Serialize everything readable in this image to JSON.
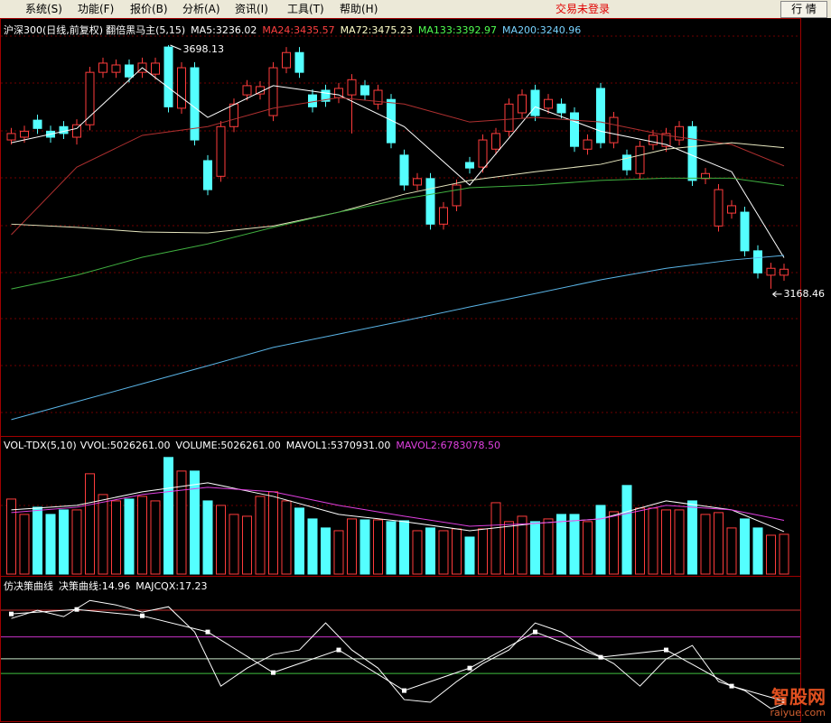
{
  "menu": [
    "系统(S)",
    "功能(F)",
    "报价(B)",
    "分析(A)",
    "资讯(I)",
    "工具(T)",
    "帮助(H)"
  ],
  "status": "交易未登录",
  "button": "行 情",
  "watermark": {
    "title": "智股网",
    "url": "raiyue.com"
  },
  "chart_data": [
    {
      "type": "candlestick",
      "title": "沪深300(日线,前复权)",
      "subtitle": "翻倍黑马主(5,15)",
      "up_color": "#ff3c3c",
      "down_color": "#54ffff",
      "ylim": [
        2874,
        3757
      ],
      "open": [
        3492,
        3498,
        3535,
        3511,
        3521,
        3498,
        3525,
        3639,
        3639,
        3655,
        3639,
        3635,
        3694,
        3561,
        3649,
        3447,
        3413,
        3521,
        3590,
        3592,
        3545,
        3649,
        3682,
        3590,
        3600,
        3584,
        3590,
        3610,
        3570,
        3580,
        3459,
        3394,
        3408,
        3309,
        3349,
        3443,
        3433,
        3472,
        3511,
        3551,
        3600,
        3561,
        3570,
        3551,
        3472,
        3604,
        3486,
        3459,
        3419,
        3482,
        3478,
        3492,
        3521,
        3408,
        3305,
        3333,
        3335,
        3251,
        3198,
        3198
      ],
      "close": [
        3506,
        3511,
        3517,
        3498,
        3506,
        3525,
        3639,
        3659,
        3655,
        3629,
        3659,
        3659,
        3564,
        3649,
        3492,
        3384,
        3521,
        3570,
        3610,
        3608,
        3649,
        3682,
        3639,
        3564,
        3576,
        3604,
        3623,
        3590,
        3600,
        3486,
        3394,
        3408,
        3309,
        3345,
        3394,
        3431,
        3492,
        3506,
        3570,
        3590,
        3545,
        3580,
        3551,
        3478,
        3492,
        3486,
        3541,
        3427,
        3478,
        3502,
        3506,
        3521,
        3404,
        3419,
        3384,
        3349,
        3251,
        3203,
        3213,
        3211
      ],
      "high": [
        3518,
        3523,
        3547,
        3523,
        3533,
        3537,
        3651,
        3671,
        3667,
        3667,
        3671,
        3671,
        3698.13,
        3661,
        3661,
        3459,
        3533,
        3582,
        3622,
        3620,
        3661,
        3694,
        3694,
        3602,
        3612,
        3616,
        3635,
        3622,
        3612,
        3592,
        3471,
        3420,
        3420,
        3357,
        3406,
        3455,
        3504,
        3518,
        3582,
        3602,
        3612,
        3592,
        3582,
        3563,
        3504,
        3616,
        3553,
        3471,
        3490,
        3514,
        3518,
        3533,
        3533,
        3431,
        3396,
        3361,
        3347,
        3263,
        3225,
        3223
      ],
      "low": [
        3482,
        3486,
        3505,
        3486,
        3494,
        3482,
        3513,
        3627,
        3627,
        3617,
        3627,
        3623,
        3552,
        3549,
        3480,
        3372,
        3401,
        3509,
        3578,
        3580,
        3533,
        3637,
        3627,
        3552,
        3564,
        3572,
        3506,
        3578,
        3558,
        3474,
        3382,
        3382,
        3297,
        3297,
        3337,
        3419,
        3421,
        3460,
        3499,
        3539,
        3533,
        3549,
        3539,
        3466,
        3460,
        3474,
        3474,
        3415,
        3407,
        3470,
        3466,
        3480,
        3392,
        3396,
        3293,
        3321,
        3239,
        3191,
        3168.46,
        3186
      ],
      "max_label": 3698.13,
      "min_label": 3168.46,
      "ma_x": [
        0,
        5,
        10,
        15,
        20,
        25,
        30,
        35,
        40,
        45,
        50,
        55,
        59
      ],
      "series": [
        {
          "name": "MA5:",
          "color": "#ffffff",
          "line_color": "#ffffff",
          "values": [
            3486,
            3517,
            3649,
            3541,
            3610,
            3590,
            3521,
            3394,
            3564,
            3511,
            3482,
            3423,
            3236.02
          ]
        },
        {
          "name": "MA24:",
          "color": "#ff4040",
          "line_color": "#b03030",
          "values": [
            3286,
            3433,
            3502,
            3521,
            3561,
            3584,
            3570,
            3531,
            3541,
            3531,
            3502,
            3482,
            3435.57
          ]
        },
        {
          "name": "MA72:",
          "color": "#ffffc8",
          "line_color": "#e8e8c0",
          "values": [
            3309,
            3302,
            3292,
            3290,
            3305,
            3335,
            3374,
            3404,
            3423,
            3439,
            3472,
            3486,
            3475.23
          ]
        },
        {
          "name": "MA133:",
          "color": "#50ff50",
          "line_color": "#40b040",
          "values": [
            3168,
            3198,
            3237,
            3266,
            3302,
            3335,
            3364,
            3388,
            3394,
            3404,
            3409,
            3409,
            3392.97
          ]
        },
        {
          "name": "MA200:",
          "color": "#78d2ff",
          "line_color": "#5ab4e6",
          "values": [
            2884,
            2923,
            2962,
            3001,
            3041,
            3070,
            3099,
            3129,
            3158,
            3188,
            3213,
            3231,
            3240.96
          ]
        }
      ]
    },
    {
      "type": "bar",
      "title": "VOL-TDX(5,10)",
      "ylim": [
        0,
        17000000
      ],
      "values": [
        9480000,
        7540000,
        8450000,
        7540000,
        8110000,
        8110000,
        12680000,
        10050000,
        9250000,
        9480000,
        9820000,
        9250000,
        14740000,
        13020000,
        13020000,
        9250000,
        8680000,
        7540000,
        7310000,
        9820000,
        10400000,
        9250000,
        8340000,
        6970000,
        5830000,
        5480000,
        6970000,
        6850000,
        6850000,
        6630000,
        6740000,
        5480000,
        5830000,
        5480000,
        5710000,
        4680000,
        5710000,
        9020000,
        6630000,
        7310000,
        6630000,
        6970000,
        7540000,
        7540000,
        6630000,
        8680000,
        7880000,
        11200000,
        8340000,
        8340000,
        8110000,
        8110000,
        9250000,
        7540000,
        7770000,
        5830000,
        6970000,
        5830000,
        4910000,
        5026261
      ],
      "indicators": [
        {
          "name": "VVOL:",
          "value": 5026261,
          "value_label": "5026261.00",
          "color": "#ffffff"
        },
        {
          "name": "VOLUME:",
          "value": 5026261,
          "value_label": "5026261.00",
          "color": "#ffffff"
        }
      ],
      "series": [
        {
          "name": "MAVOL1:",
          "color": "#ffffff",
          "value_label": "5370931.00",
          "values": [
            8110000,
            8680000,
            10400000,
            11540000,
            9820000,
            7540000,
            6630000,
            5480000,
            6400000,
            6970000,
            9250000,
            8110000,
            5370931
          ]
        },
        {
          "name": "MAVOL2:",
          "color": "#e040e0",
          "value_label": "6783078.50",
          "values": [
            7770000,
            8450000,
            10050000,
            10970000,
            10400000,
            8680000,
            7310000,
            6050000,
            6400000,
            6970000,
            8680000,
            8110000,
            6783078.5
          ]
        }
      ]
    },
    {
      "type": "line",
      "title": "仿决策曲线",
      "ylim": [
        0,
        115
      ],
      "ref_lines": [
        {
          "value": 92,
          "color": "#c83232"
        },
        {
          "value": 70,
          "color": "#c832c8"
        },
        {
          "value": 52,
          "color": "#c8e6c8"
        },
        {
          "value": 40,
          "color": "#40c040"
        }
      ],
      "series": [
        {
          "name": "决策曲线:",
          "color": "#ffffff",
          "x": [
            0,
            2,
            4,
            6,
            8,
            10,
            12,
            14,
            16,
            18,
            20,
            22,
            24,
            26,
            28,
            30,
            32,
            34,
            36,
            38,
            40,
            42,
            44,
            46,
            48,
            50,
            52,
            54,
            56,
            58,
            59
          ],
          "values": [
            85.2,
            91.9,
            86.7,
            100,
            96.3,
            90.4,
            94.8,
            74.1,
            29.6,
            44.4,
            55.6,
            59.3,
            81.5,
            59.3,
            44.4,
            18.5,
            16.3,
            33.3,
            48.1,
            59.3,
            81.5,
            74.1,
            59.3,
            48.1,
            29.6,
            51.9,
            63,
            33.3,
            25.9,
            11.1,
            14.96
          ]
        },
        {
          "name": "MAJCQX:",
          "color": "#ffffff",
          "markers": true,
          "x": [
            0,
            5,
            10,
            15,
            20,
            25,
            30,
            35,
            40,
            45,
            50,
            55,
            59
          ],
          "values": [
            88.9,
            92.6,
            87.4,
            74.1,
            40.7,
            59.3,
            25.9,
            44.4,
            74.1,
            53.3,
            59.3,
            29.6,
            17.23
          ]
        }
      ]
    }
  ]
}
